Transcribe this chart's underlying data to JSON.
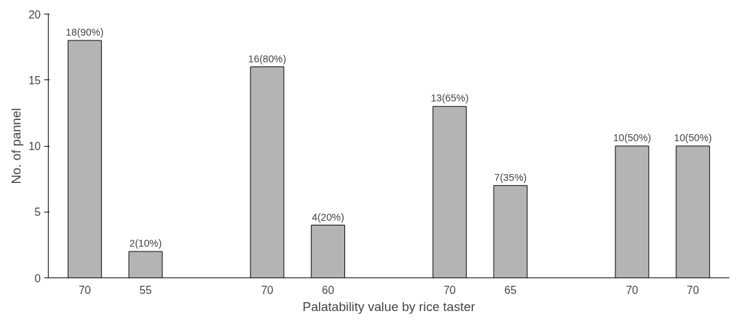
{
  "chart_data": {
    "type": "bar",
    "xlabel": "Palatability value by rice taster",
    "ylabel": "No. of pannel",
    "categories": [
      "70",
      "55",
      null,
      "70",
      "60",
      null,
      "70",
      "65",
      null,
      "70",
      "70"
    ],
    "values": [
      18,
      2,
      null,
      16,
      4,
      null,
      13,
      7,
      null,
      10,
      10
    ],
    "value_labels": [
      "18(90%)",
      "2(10%)",
      null,
      "16(80%)",
      "4(20%)",
      null,
      "13(65%)",
      "7(35%)",
      null,
      "10(50%)",
      "10(50%)"
    ],
    "color": "#b4b4b4",
    "ylim": [
      0,
      20
    ],
    "yticks": [
      0,
      5,
      10,
      15,
      20
    ],
    "grid": false
  }
}
